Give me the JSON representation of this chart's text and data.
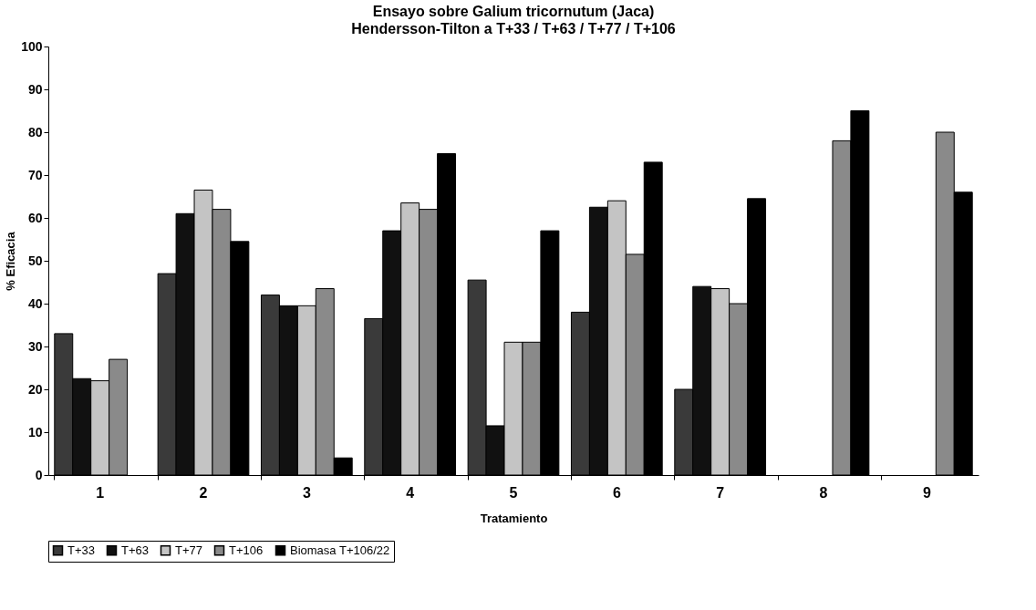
{
  "chart_data": {
    "type": "bar",
    "title": "Ensayo sobre Galium tricornutum (Jaca)",
    "subtitle": "Hendersson-Tilton a T+33 / T+63 / T+77 / T+106",
    "xlabel": "Tratamiento",
    "ylabel": "% Eficacia",
    "categories": [
      "1",
      "2",
      "3",
      "4",
      "5",
      "6",
      "7",
      "8",
      "9"
    ],
    "series": [
      {
        "name": "T+33",
        "color": "#3a3a3a",
        "values": [
          33,
          47,
          42,
          36.5,
          45.5,
          38,
          20,
          null,
          null
        ]
      },
      {
        "name": "T+63",
        "color": "#111111",
        "values": [
          22.5,
          61,
          39.5,
          57,
          11.5,
          62.5,
          44,
          null,
          null
        ]
      },
      {
        "name": "T+77",
        "color": "#c4c4c4",
        "values": [
          22,
          66.5,
          39.5,
          63.5,
          31,
          64,
          43.5,
          null,
          null
        ]
      },
      {
        "name": "T+106",
        "color": "#8a8a8a",
        "values": [
          27,
          62,
          43.5,
          62,
          31,
          51.5,
          40,
          78,
          80
        ]
      },
      {
        "name": "Biomasa T+106/22",
        "color": "#000000",
        "values": [
          null,
          54.5,
          4,
          75,
          57,
          73,
          64.5,
          85,
          66
        ]
      }
    ],
    "ylim": [
      0,
      100
    ],
    "yticks": [
      0,
      10,
      20,
      30,
      40,
      50,
      60,
      70,
      80,
      90,
      100
    ],
    "grid": false,
    "legend": "bottom"
  }
}
